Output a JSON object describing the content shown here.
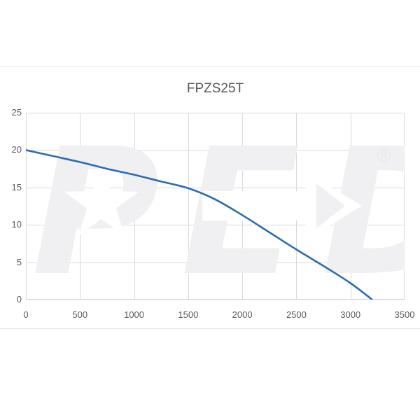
{
  "chart_data": {
    "type": "line",
    "title": "FPZS25T",
    "x": [
      0,
      250,
      500,
      750,
      1000,
      1250,
      1500,
      1750,
      2000,
      2250,
      2500,
      2750,
      3000,
      3200
    ],
    "y": [
      20,
      19.2,
      18.4,
      17.5,
      16.7,
      15.8,
      14.9,
      13.4,
      11.3,
      9.0,
      6.7,
      4.5,
      2.2,
      0
    ],
    "xlim": [
      0,
      3500
    ],
    "ylim": [
      0,
      25
    ],
    "xticks": [
      0,
      500,
      1000,
      1500,
      2000,
      2500,
      3000,
      3500
    ],
    "yticks": [
      0,
      5,
      10,
      15,
      20,
      25
    ],
    "xlabel": "",
    "ylabel": "",
    "grid": true,
    "legend_position": "none",
    "line_color": "#2e6bb0",
    "grid_color": "#d9d9d9",
    "axis_frame_color": "#c9c9c9",
    "label_color": "#595959"
  },
  "watermark": {
    "text": "PED",
    "registered_mark": "®",
    "color": "#f0f0f2"
  }
}
